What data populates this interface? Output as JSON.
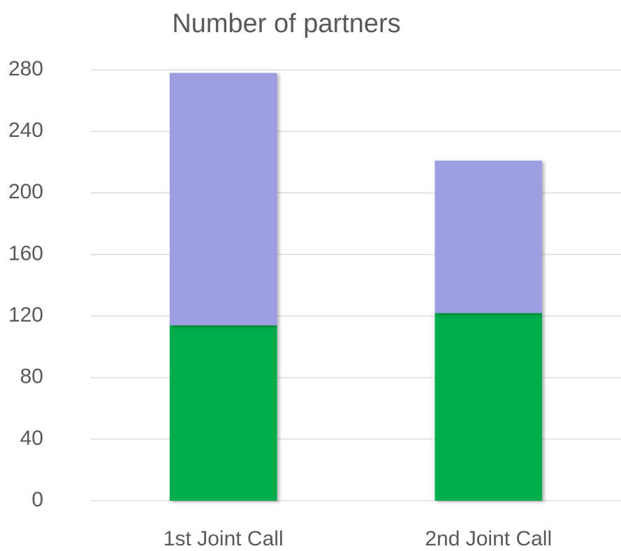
{
  "chart_data": {
    "type": "stacked_bar",
    "title": "Number of partners",
    "categories": [
      "1st Joint Call",
      "2nd Joint Call"
    ],
    "series": [
      {
        "color": "#00ad4e",
        "values": [
          114,
          122
        ]
      },
      {
        "color": "#9e9ddf",
        "values": [
          164,
          99
        ]
      }
    ],
    "ylim": [
      0,
      280
    ],
    "yticks": [
      0,
      40,
      80,
      120,
      160,
      200,
      240,
      280
    ],
    "grid": true
  }
}
